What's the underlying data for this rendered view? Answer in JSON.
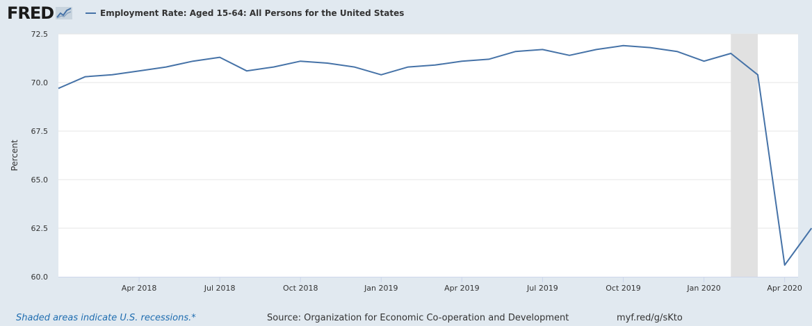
{
  "header": {
    "logo_text": "FRED",
    "series_title": "Employment Rate: Aged 15-64: All Persons for the United States"
  },
  "footer": {
    "recession_note": "Shaded areas indicate U.S. recessions.*",
    "source": "Source: Organization for Economic Co-operation and Development",
    "short_url": "myf.red/g/sKto"
  },
  "colors": {
    "line": "#4572a7",
    "recession": "#e1e1e1",
    "background": "#e1e9f0",
    "grid": "#e6e6e6",
    "recession_note": "#1f6db0"
  },
  "chart_data": {
    "type": "line",
    "title": "Employment Rate: Aged 15-64: All Persons for the United States",
    "xlabel": "",
    "ylabel": "Percent",
    "ylim": [
      60.0,
      72.5
    ],
    "yticks": [
      "60.0",
      "62.5",
      "65.0",
      "67.5",
      "70.0",
      "72.5"
    ],
    "xticks": [
      "Apr 2018",
      "Jul 2018",
      "Oct 2018",
      "Jan 2019",
      "Apr 2019",
      "Jul 2019",
      "Oct 2019",
      "Jan 2020",
      "Apr 2020"
    ],
    "xtick_month_index": [
      3,
      6,
      9,
      12,
      15,
      18,
      21,
      24,
      27
    ],
    "x": [
      "Jan 2018",
      "Feb 2018",
      "Mar 2018",
      "Apr 2018",
      "May 2018",
      "Jun 2018",
      "Jul 2018",
      "Aug 2018",
      "Sep 2018",
      "Oct 2018",
      "Nov 2018",
      "Dec 2018",
      "Jan 2019",
      "Feb 2019",
      "Mar 2019",
      "Apr 2019",
      "May 2019",
      "Jun 2019",
      "Jul 2019",
      "Aug 2019",
      "Sep 2019",
      "Oct 2019",
      "Nov 2019",
      "Dec 2019",
      "Jan 2020",
      "Feb 2020",
      "Mar 2020",
      "Apr 2020",
      "May 2020"
    ],
    "series": [
      {
        "name": "Employment Rate: Aged 15-64: All Persons for the United States",
        "values": [
          69.7,
          70.3,
          70.4,
          70.6,
          70.8,
          71.1,
          71.3,
          70.6,
          70.8,
          71.1,
          71.0,
          70.8,
          70.4,
          70.8,
          70.9,
          71.1,
          71.2,
          71.6,
          71.7,
          71.4,
          71.7,
          71.9,
          71.8,
          71.6,
          71.1,
          71.5,
          70.4,
          60.6,
          62.5
        ]
      }
    ],
    "recession": {
      "start_month_index": 25,
      "end_month_index": 26
    },
    "grid": true
  }
}
